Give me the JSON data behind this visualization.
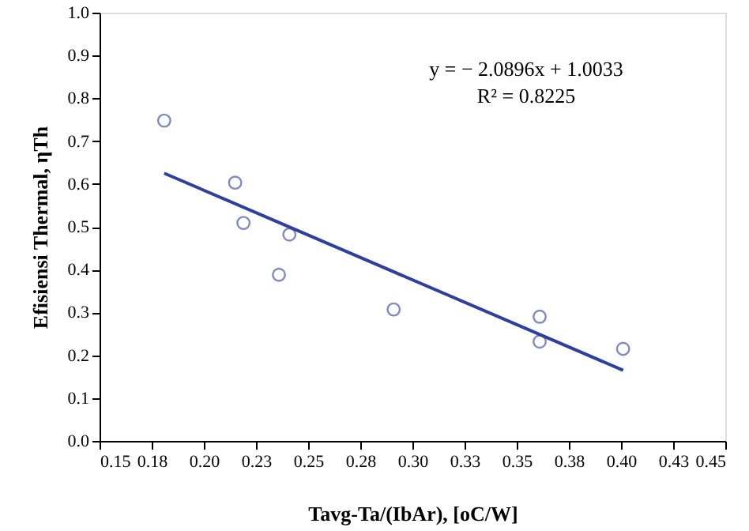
{
  "chart_data": {
    "type": "scatter",
    "xlabel": "Tavg-Ta/(IbAr), [oC/W]",
    "ylabel": "Efisiensi Thermal, ηTh",
    "series": [
      {
        "type": "scatter",
        "color": "#4a5aa8",
        "marker": "circle",
        "x": [
          0.181,
          0.215,
          0.219,
          0.236,
          0.241,
          0.291,
          0.361,
          0.361,
          0.401
        ],
        "values": [
          0.748,
          0.603,
          0.509,
          0.388,
          0.482,
          0.307,
          0.29,
          0.232,
          0.215
        ]
      },
      {
        "type": "line",
        "color": "#2e3f9e",
        "marker": "none",
        "x": [
          0.181,
          0.401
        ],
        "values": [
          0.625,
          0.165
        ]
      }
    ],
    "xlim": [
      0.15,
      0.45
    ],
    "ylim": [
      0,
      1.0
    ],
    "xticks": [
      {
        "value": 0.15,
        "label": "0.15"
      },
      {
        "value": 0.175,
        "label": "0.18"
      },
      {
        "value": 0.2,
        "label": "0.20"
      },
      {
        "value": 0.225,
        "label": "0.23"
      },
      {
        "value": 0.25,
        "label": "0.25"
      },
      {
        "value": 0.275,
        "label": "0.28"
      },
      {
        "value": 0.3,
        "label": "0.30"
      },
      {
        "value": 0.325,
        "label": "0.33"
      },
      {
        "value": 0.35,
        "label": "0.35"
      },
      {
        "value": 0.375,
        "label": "0.38"
      },
      {
        "value": 0.4,
        "label": "0.40"
      },
      {
        "value": 0.425,
        "label": "0.43"
      },
      {
        "value": 0.45,
        "label": "0.45"
      }
    ],
    "yticks": [
      {
        "value": 0,
        "label": "0.0"
      },
      {
        "value": 0.1,
        "label": "0.1"
      },
      {
        "value": 0.2,
        "label": "0.2"
      },
      {
        "value": 0.3,
        "label": "0.3"
      },
      {
        "value": 0.4,
        "label": "0.4"
      },
      {
        "value": 0.5,
        "label": "0.5"
      },
      {
        "value": 0.6,
        "label": "0.6"
      },
      {
        "value": 0.7,
        "label": "0.7"
      },
      {
        "value": 0.8,
        "label": "0.8"
      },
      {
        "value": 0.9,
        "label": "0.9"
      },
      {
        "value": 1.0,
        "label": "1.0"
      }
    ],
    "annotations": [
      "y = − 2.0896x + 1.0033",
      "R² = 0.8225"
    ],
    "grid": false
  }
}
